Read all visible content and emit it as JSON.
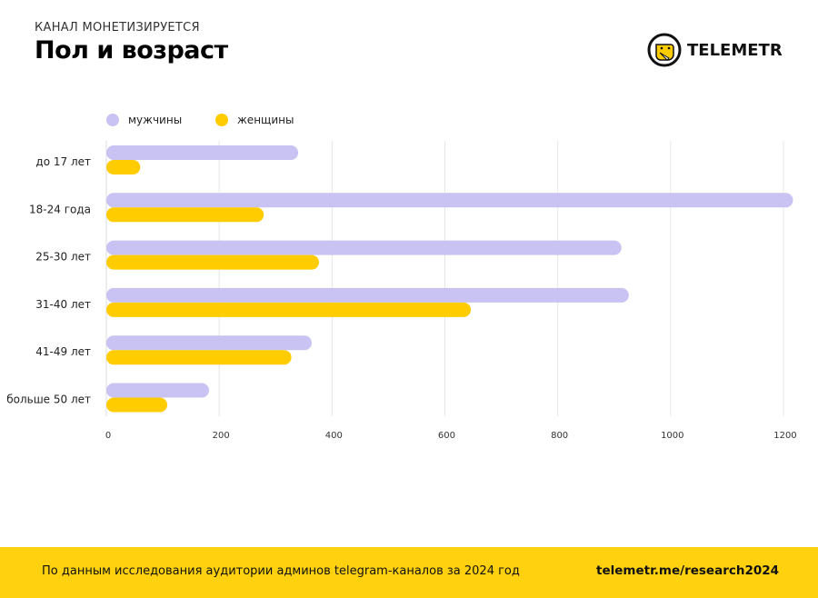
{
  "header": {
    "subtitle": "КАНАЛ МОНЕТИЗИРУЕТСЯ",
    "title": "Пол и возраст",
    "logo_text": "TELEMETR"
  },
  "footer": {
    "note": "По данным исследования аудитории админов telegram-каналов за 2024 год",
    "link": "telemetr.me/research2024"
  },
  "chart_data": {
    "type": "bar",
    "orientation": "horizontal",
    "title": "Пол и возраст",
    "categories": [
      "до 17 лет",
      "18-24 года",
      "25-30 лет",
      "31-40 лет",
      "41-49 лет",
      "больше 50 лет"
    ],
    "series": [
      {
        "name": "мужчины",
        "color": "#C9C3F3",
        "values": [
          340,
          1217,
          913,
          926,
          364,
          182
        ]
      },
      {
        "name": "женщины",
        "color": "#FFCC00",
        "values": [
          60,
          279,
          377,
          646,
          328,
          108
        ]
      }
    ],
    "xticks": [
      0,
      200,
      400,
      600,
      800,
      1000,
      1200
    ],
    "xlim": [
      0,
      1220
    ],
    "grid": true,
    "legend": "top-left"
  }
}
